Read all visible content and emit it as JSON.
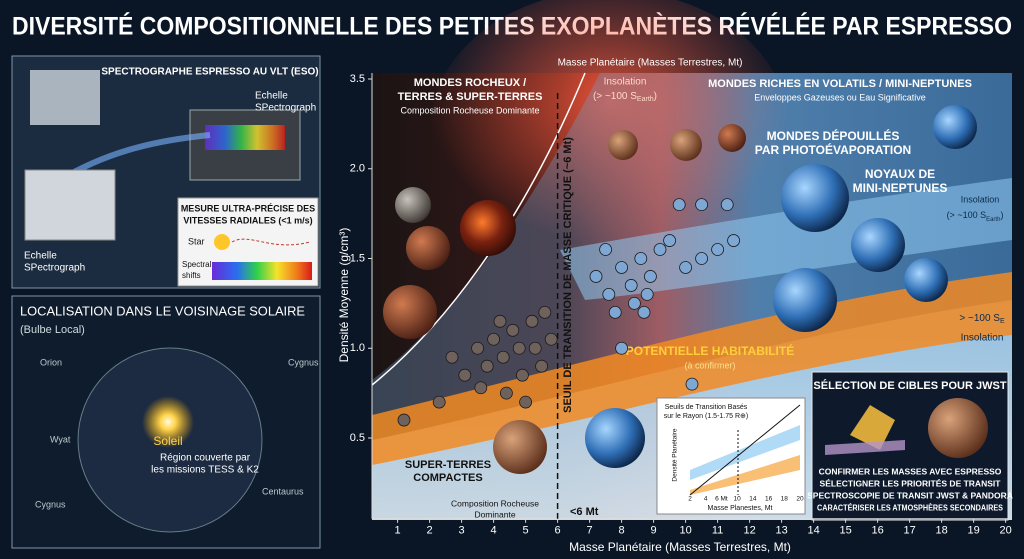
{
  "header": {
    "title": "DIVERSITÉ COMPOSITIONNELLE DES PETITES EXOPLANÈTES RÉVÉLÉE PAR ESPRESSO"
  },
  "spectrograph_panel": {
    "title": "SPECTROGRAPHE ESPRESSO AU VLT (ESO)",
    "label_top": [
      "Echelle",
      "SPectrograph"
    ],
    "label_bottom": [
      "Echelle",
      "SPectrograph"
    ],
    "measure": [
      "MESURE ULTRA-PRÉCISE DES",
      "VITESSES RADIALES (<1 m/s)"
    ],
    "star": "Star",
    "shifts": [
      "Spectral",
      "shifts"
    ]
  },
  "neighborhood_panel": {
    "title": "LOCALISATION DANS LE VOISINAGE SOLAIRE",
    "subtitle": "(Bulbe Local)",
    "sun": "Soleil",
    "region": [
      "Région couverte par",
      "les missions TESS & K2"
    ],
    "constellations": [
      "Orion",
      "Cygnus",
      "Wyat",
      "Cygnus",
      "Centaurus"
    ]
  },
  "chart_data": {
    "type": "scatter",
    "x_label": "Masse Planétaire (Masses Terrestres, Mt)",
    "x_label_top": "Masse Planétaire (Masses Terrestres, Mt)",
    "y_label": "Densité Moyenne (g/cm³)",
    "xlim": [
      0.2,
      20.2
    ],
    "xticks": [
      1,
      2,
      3,
      4,
      5,
      6,
      7,
      8,
      9,
      10,
      11,
      12,
      13,
      14,
      15,
      16,
      17,
      18,
      19,
      20
    ],
    "ylim": [
      0.05,
      3.6
    ],
    "yticks": [
      0.5,
      {
        "value": 1,
        "label": "1.0"
      },
      1.5,
      {
        "value": 2,
        "label": "2.0"
      },
      3.5
    ],
    "threshold": 6,
    "threshold_label": "<6 Mt",
    "threshold_title": "SEUIL DE TRANSITION DE MASSE CRITIQUE (~6 Mt)",
    "series": [
      {
        "color": "#6f625c",
        "x": [
          1.2,
          2.3,
          2.7,
          3.1,
          3.5,
          3.6,
          3.8,
          4.0,
          4.2,
          4.3,
          4.4,
          4.6,
          4.8,
          4.9,
          5.0,
          5.2,
          5.3,
          5.5,
          5.6,
          5.8
        ],
        "values": [
          0.6,
          0.7,
          0.95,
          0.85,
          1.0,
          0.78,
          0.9,
          1.05,
          1.15,
          0.95,
          0.75,
          1.1,
          1.0,
          0.85,
          0.7,
          1.15,
          1.0,
          0.9,
          1.2,
          1.05
        ]
      },
      {
        "color": "#7ea7d4",
        "x": [
          7.2,
          7.5,
          7.6,
          7.8,
          8.0,
          8.0,
          8.3,
          8.4,
          8.6,
          8.7,
          8.8,
          8.9,
          9.2,
          9.5,
          9.8,
          10.0,
          10.2,
          10.5,
          10.5,
          11.0,
          11.3,
          11.5
        ],
        "values": [
          1.4,
          1.55,
          1.3,
          1.2,
          1.45,
          1.0,
          1.35,
          1.25,
          1.5,
          1.2,
          1.3,
          1.4,
          1.55,
          1.6,
          1.8,
          1.45,
          0.8,
          1.5,
          1.8,
          1.55,
          1.8,
          1.6
        ]
      }
    ]
  },
  "zones": {
    "rocky": [
      "MONDES ROCHEUX /",
      "TERRES & SUPER-TERRES",
      "Composition Rocheuse Dominante"
    ],
    "insolation_top": {
      "line1": "Insolation",
      "line2": "(> ~100 S",
      "sub": "Earth",
      "end": ")"
    },
    "volatile": [
      "MONDES RICHES EN VOLATILS / MINI-NEPTUNES",
      "Enveloppes Gazeuses ou Eau Significative"
    ],
    "stripped": [
      "MONDES DÉPOUILLÉS",
      "PAR PHOTOÉVAPORATION"
    ],
    "cores": [
      "NOYAUX DE",
      "MINI-NEPTUNES"
    ],
    "insolation_right": {
      "line1": "Insolation",
      "line2": "(> ~100 S",
      "sub": "Earth",
      "end": ")"
    },
    "insolation_low": {
      "line1": "> ~100 S",
      "sub": "E",
      "line2": "Insolation"
    },
    "habitability": [
      "POTENTIELLE HABITABILITÉ",
      "(à confirmer)"
    ],
    "compact": [
      "SUPER-TERRES",
      "COMPACTES"
    ],
    "rocky_bottom": [
      "Composition Rocheuse",
      "Dominante"
    ]
  },
  "inset": {
    "title": [
      "Seuils de Transition Basés",
      "sur le Rayon (1.5-1.75 R⊕)"
    ],
    "y_label": "Densité Planétaire",
    "x_label": "Masse Planestes, Mt",
    "xticks": [
      "2",
      "4",
      "6 Mt",
      "10",
      "14",
      "16",
      "18",
      "20"
    ]
  },
  "jwst": {
    "title": "SÉLECTION DE CIBLES POUR JWST",
    "steps": [
      "CONFIRMER LES MASSES AVEC ESPRESSO",
      "SÉLECTIGNER LES PRIORITÉS DE TRANSIT",
      "SPECTROSCOPIE DE TRANSIT JWST & PANDORA",
      "CARACTÉRISER LES ATMOSPHÈRES SECONDAIRES"
    ]
  }
}
